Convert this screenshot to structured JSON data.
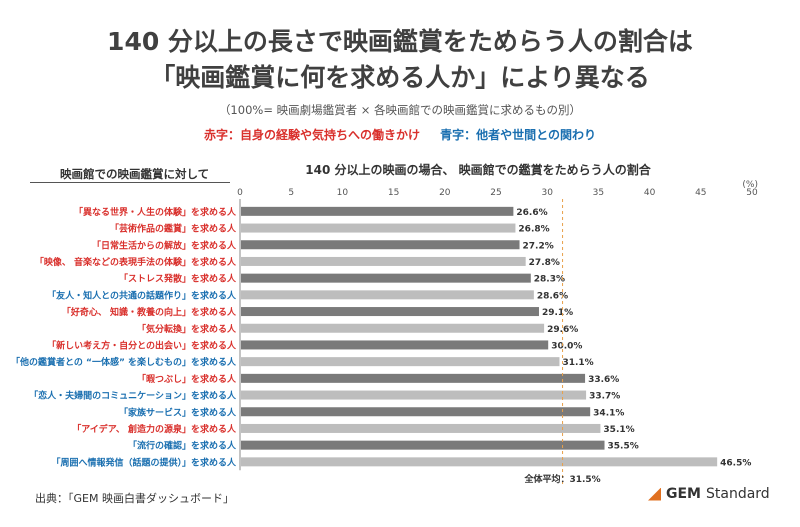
{
  "header": {
    "title_line1": "140 分以上の長さで映画鑑賞をためらう人の割合は",
    "title_line2": "「映画鑑賞に何を求める人か」により異なる",
    "subtitle": "（100%= 映画劇場鑑賞者 × 各映画館での映画鑑賞に求めるもの別）",
    "legend_red": "赤字：自身の経験や気持ちへの働きかけ",
    "legend_blue": "青字：他者や世間との関わり"
  },
  "left_header": "映画館での映画鑑賞に対して",
  "footer": {
    "source": "出典：「GEM 映画白書ダッシュボード」",
    "logo_bold": "GEM",
    "logo_rest": "Standard"
  },
  "colors": {
    "red": "#d9302c",
    "blue": "#1a6fb0",
    "dark_bar": "#7a7a7a",
    "light_bar": "#bdbdbd",
    "avg_line": "#e8a04a"
  },
  "chart_data": {
    "type": "bar",
    "orientation": "horizontal",
    "title": "140 分以上の映画の場合、 映画館での鑑賞をためらう人の割合",
    "unit_label": "(%)",
    "xlim": [
      0,
      50
    ],
    "ticks": [
      0,
      5,
      10,
      15,
      20,
      25,
      30,
      35,
      40,
      45,
      50
    ],
    "average": {
      "label": "全体平均：31.5%",
      "value": 31.5
    },
    "categories": [
      "「異なる世界・人生の体験」を求める人",
      "「芸術作品の鑑賞」を求める人",
      "「日常生活からの解放」を求める人",
      "「映像、 音楽などの表現手法の体験」を求める人",
      "「ストレス発散」を求める人",
      "「友人・知人との共通の話題作り」を求める人",
      "「好奇心、 知識・教養の向上」を求める人",
      "「気分転換」を求める人",
      "「新しい考え方・自分との出会い」を求める人",
      "「他の鑑賞者との “一体感” を楽しむもの」を求める人",
      "「暇つぶし」を求める人",
      "「恋人・夫婦間のコミュニケーション」を求める人",
      "「家族サービス」を求める人",
      "「アイデア、 創造力の源泉」を求める人",
      "「流行の確認」を求める人",
      "「周囲へ情報発信（話題の提供）」を求める人"
    ],
    "label_colors": [
      "red",
      "red",
      "red",
      "red",
      "red",
      "blue",
      "red",
      "red",
      "red",
      "blue",
      "red",
      "blue",
      "blue",
      "red",
      "blue",
      "blue"
    ],
    "values": [
      26.6,
      26.8,
      27.2,
      27.8,
      28.3,
      28.6,
      29.1,
      29.6,
      30.0,
      31.1,
      33.6,
      33.7,
      34.1,
      35.1,
      35.5,
      46.5
    ],
    "value_labels": [
      "26.6%",
      "26.8%",
      "27.2%",
      "27.8%",
      "28.3%",
      "28.6%",
      "29.1%",
      "29.6%",
      "30.0%",
      "31.1%",
      "33.6%",
      "33.7%",
      "34.1%",
      "35.1%",
      "35.5%",
      "46.5%"
    ]
  }
}
